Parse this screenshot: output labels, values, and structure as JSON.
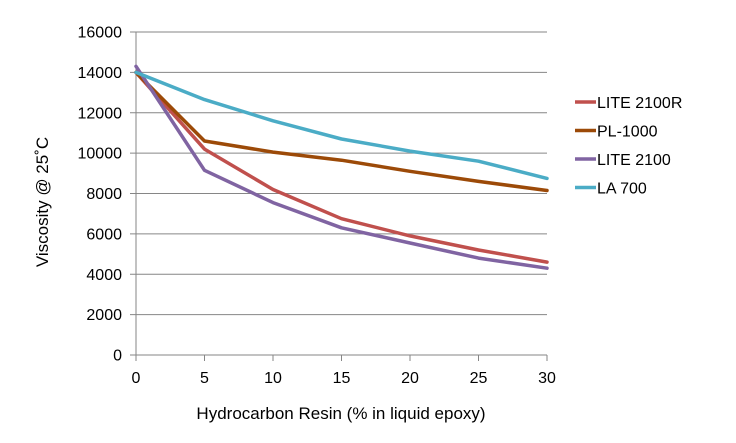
{
  "chart_data": {
    "type": "line",
    "title": "",
    "xlabel": "Hydrocarbon Resin (% in liquid epoxy)",
    "ylabel": "Viscosity @ 25˚C",
    "x": [
      0,
      5,
      10,
      15,
      20,
      25,
      30
    ],
    "xlim": [
      0,
      30
    ],
    "ylim": [
      0,
      16000
    ],
    "x_ticks": [
      "0",
      "5",
      "10",
      "15",
      "20",
      "25",
      "30"
    ],
    "y_ticks": [
      "0",
      "2000",
      "4000",
      "6000",
      "8000",
      "10000",
      "12000",
      "14000",
      "16000"
    ],
    "grid": "horizontal",
    "legend_position": "right",
    "series": [
      {
        "name": "LITE 2100R",
        "color": "#c0504d",
        "values": [
          14000,
          10200,
          8200,
          6750,
          5900,
          5200,
          4600
        ]
      },
      {
        "name": "PL-1000",
        "color": "#9c4a08",
        "values": [
          14000,
          10600,
          10050,
          9650,
          9100,
          8600,
          8150
        ]
      },
      {
        "name": "LITE 2100",
        "color": "#8064a2",
        "values": [
          14300,
          9150,
          7550,
          6300,
          5550,
          4800,
          4300
        ]
      },
      {
        "name": "LA 700",
        "color": "#4bacc6",
        "values": [
          14000,
          12650,
          11600,
          10700,
          10100,
          9600,
          8750
        ]
      }
    ]
  }
}
